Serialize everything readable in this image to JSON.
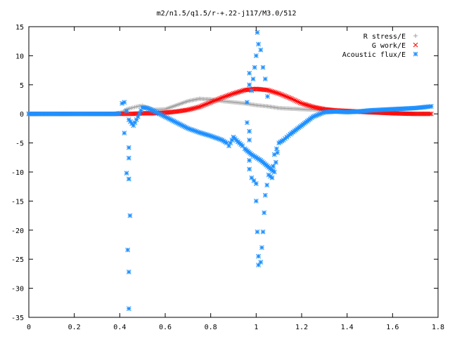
{
  "chart_data": {
    "type": "scatter",
    "title": "m2/n1.5/q1.5/r-+.22-j117/M3.0/512",
    "xlabel": "",
    "ylabel": "",
    "xlim": [
      0,
      1.8
    ],
    "ylim": [
      -35,
      15
    ],
    "x_ticks": [
      0,
      0.2,
      0.4,
      0.6,
      0.8,
      1,
      1.2,
      1.4,
      1.6,
      1.8
    ],
    "x_tick_labels": [
      "0",
      "0.2",
      "0.4",
      "0.6",
      "0.8",
      "1",
      "1.2",
      "1.4",
      "1.6",
      "1.8"
    ],
    "y_ticks": [
      -35,
      -30,
      -25,
      -20,
      -15,
      -10,
      -5,
      0,
      5,
      10,
      15
    ],
    "y_tick_labels": [
      "-35",
      "-30",
      "-25",
      "-20",
      "-15",
      "-10",
      "-5",
      "0",
      "5",
      "10",
      "15"
    ],
    "grid": false,
    "legend_position": "top-right",
    "series": [
      {
        "name": "R stress/E",
        "marker": "plus",
        "color": "#a0a0a0",
        "points": [
          [
            0,
            0
          ],
          [
            0.1,
            0
          ],
          [
            0.2,
            0
          ],
          [
            0.3,
            0
          ],
          [
            0.38,
            0
          ],
          [
            0.41,
            0.3
          ],
          [
            0.43,
            0.8
          ],
          [
            0.45,
            1.0
          ],
          [
            0.48,
            1.3
          ],
          [
            0.5,
            1.4
          ],
          [
            0.55,
            0.7
          ],
          [
            0.6,
            0.8
          ],
          [
            0.65,
            1.5
          ],
          [
            0.7,
            2.2
          ],
          [
            0.75,
            2.6
          ],
          [
            0.8,
            2.5
          ],
          [
            0.85,
            2.2
          ],
          [
            0.9,
            2.0
          ],
          [
            0.95,
            1.8
          ],
          [
            1.0,
            1.5
          ],
          [
            1.05,
            1.3
          ],
          [
            1.1,
            1.0
          ],
          [
            1.15,
            0.9
          ],
          [
            1.2,
            0.8
          ],
          [
            1.3,
            0.6
          ],
          [
            1.4,
            0.4
          ],
          [
            1.5,
            0.2
          ],
          [
            1.6,
            0.1
          ],
          [
            1.7,
            0
          ],
          [
            1.77,
            0
          ]
        ]
      },
      {
        "name": "G work/E",
        "marker": "cross",
        "color": "#ff0000",
        "points": [
          [
            0,
            0
          ],
          [
            0.1,
            0
          ],
          [
            0.2,
            0
          ],
          [
            0.3,
            0
          ],
          [
            0.4,
            0
          ],
          [
            0.45,
            0
          ],
          [
            0.5,
            0.1
          ],
          [
            0.55,
            0.1
          ],
          [
            0.6,
            0.2
          ],
          [
            0.65,
            0.4
          ],
          [
            0.7,
            0.7
          ],
          [
            0.75,
            1.2
          ],
          [
            0.8,
            2.0
          ],
          [
            0.85,
            2.8
          ],
          [
            0.9,
            3.5
          ],
          [
            0.95,
            4.1
          ],
          [
            1.0,
            4.3
          ],
          [
            1.05,
            4.1
          ],
          [
            1.1,
            3.5
          ],
          [
            1.15,
            2.7
          ],
          [
            1.2,
            1.8
          ],
          [
            1.25,
            1.2
          ],
          [
            1.3,
            0.8
          ],
          [
            1.35,
            0.6
          ],
          [
            1.4,
            0.5
          ],
          [
            1.45,
            0.4
          ],
          [
            1.5,
            0.3
          ],
          [
            1.6,
            0.1
          ],
          [
            1.7,
            0
          ],
          [
            1.77,
            0
          ]
        ]
      },
      {
        "name": "Acoustic flux/E",
        "marker": "star",
        "color": "#1e90ff",
        "points": [
          [
            0,
            0
          ],
          [
            0.1,
            0
          ],
          [
            0.2,
            0
          ],
          [
            0.3,
            0
          ],
          [
            0.38,
            0
          ],
          [
            0.4,
            0.1
          ],
          [
            0.41,
            1.8
          ],
          [
            0.42,
            2.0
          ],
          [
            0.43,
            0.5
          ],
          [
            0.44,
            -1.0
          ],
          [
            0.46,
            -2.0
          ],
          [
            0.48,
            -0.5
          ],
          [
            0.5,
            1.1
          ],
          [
            0.52,
            1.0
          ],
          [
            0.55,
            0.5
          ],
          [
            0.6,
            -0.5
          ],
          [
            0.65,
            -1.5
          ],
          [
            0.7,
            -2.5
          ],
          [
            0.75,
            -3.2
          ],
          [
            0.8,
            -3.8
          ],
          [
            0.85,
            -4.5
          ],
          [
            0.87,
            -5.0
          ],
          [
            0.88,
            -5.5
          ],
          [
            0.9,
            -4.0
          ],
          [
            0.92,
            -4.8
          ],
          [
            0.94,
            -5.5
          ],
          [
            0.95,
            -6.0
          ],
          [
            0.98,
            -7.0
          ],
          [
            1.0,
            -7.5
          ],
          [
            1.02,
            -8.0
          ],
          [
            1.05,
            -9.0
          ],
          [
            1.08,
            -10.0
          ],
          [
            1.1,
            -5.0
          ],
          [
            1.12,
            -4.5
          ],
          [
            1.15,
            -3.5
          ],
          [
            1.2,
            -2.0
          ],
          [
            1.25,
            -0.5
          ],
          [
            1.3,
            0.3
          ],
          [
            1.35,
            0.4
          ],
          [
            1.4,
            0.3
          ],
          [
            1.45,
            0.4
          ],
          [
            1.5,
            0.6
          ],
          [
            1.55,
            0.7
          ],
          [
            1.6,
            0.8
          ],
          [
            1.65,
            0.9
          ],
          [
            1.7,
            1.0
          ],
          [
            1.75,
            1.2
          ],
          [
            1.77,
            1.3
          ],
          [
            0.42,
            -3.3
          ],
          [
            0.43,
            -10.2
          ],
          [
            0.44,
            -11.2
          ],
          [
            0.44,
            -7.6
          ],
          [
            0.44,
            -5.8
          ],
          [
            0.435,
            -23.4
          ],
          [
            0.44,
            -27.2
          ],
          [
            0.44,
            -33.5
          ],
          [
            0.445,
            -17.5
          ],
          [
            0.96,
            -1.5
          ],
          [
            0.97,
            -3.0
          ],
          [
            0.97,
            -4.5
          ],
          [
            0.97,
            -8.0
          ],
          [
            0.97,
            -9.5
          ],
          [
            0.98,
            -11.0
          ],
          [
            0.99,
            -11.5
          ],
          [
            1.0,
            -12.0
          ],
          [
            1.0,
            -15.0
          ],
          [
            1.005,
            -20.3
          ],
          [
            1.01,
            -24.5
          ],
          [
            1.01,
            -26.0
          ],
          [
            1.02,
            -25.5
          ],
          [
            1.025,
            -23.0
          ],
          [
            1.03,
            -20.3
          ],
          [
            1.035,
            -17.0
          ],
          [
            1.04,
            -14.0
          ],
          [
            1.055,
            -10.5
          ],
          [
            1.07,
            -11.0
          ],
          [
            1.075,
            -9.0
          ],
          [
            1.08,
            -7.0
          ],
          [
            1.09,
            -6.0
          ],
          [
            0.96,
            2.0
          ],
          [
            0.97,
            5.0
          ],
          [
            0.97,
            7.0
          ],
          [
            0.98,
            4.0
          ],
          [
            1.0,
            10.0
          ],
          [
            1.005,
            14.0
          ],
          [
            1.01,
            12.0
          ],
          [
            1.02,
            11.0
          ],
          [
            1.03,
            8.0
          ],
          [
            1.04,
            6.0
          ],
          [
            1.05,
            3.0
          ]
        ]
      }
    ]
  }
}
